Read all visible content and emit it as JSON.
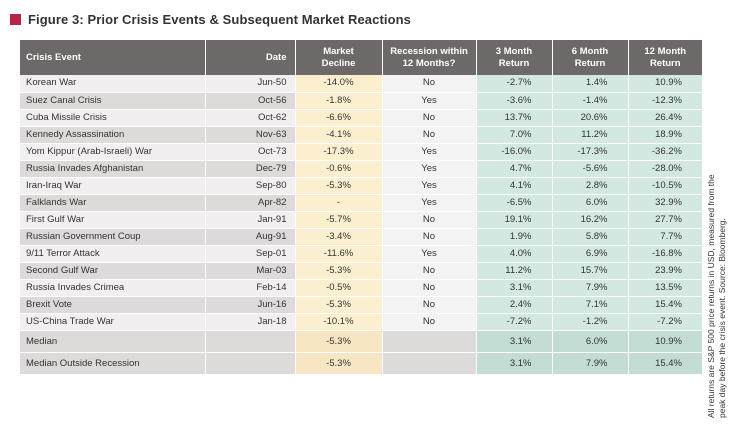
{
  "title": "Figure 3: Prior Crisis Events & Subsequent Market Reactions",
  "colors": {
    "accent": "#b8234a",
    "header": "#6d6969",
    "negative": "#c8283c",
    "decline_bg": "#fbefd0",
    "returns_bg": "#d2e8e0"
  },
  "headers": {
    "event": "Crisis Event",
    "date": "Date",
    "decline": [
      "Market",
      "Decline"
    ],
    "recession": [
      "Recession within",
      "12 Months?"
    ],
    "r3": [
      "3 Month",
      "Return"
    ],
    "r6": [
      "6 Month",
      "Return"
    ],
    "r12": [
      "12 Month",
      "Return"
    ]
  },
  "rows": [
    {
      "event": "Korean War",
      "date": "Jun-50",
      "decline": "-14.0%",
      "recession": "No",
      "r3": "-2.7%",
      "r6": "1.4%",
      "r12": "10.9%"
    },
    {
      "event": "Suez Canal Crisis",
      "date": "Oct-56",
      "decline": "-1.8%",
      "recession": "Yes",
      "r3": "-3.6%",
      "r6": "-1.4%",
      "r12": "-12.3%"
    },
    {
      "event": "Cuba Missile Crisis",
      "date": "Oct-62",
      "decline": "-6.6%",
      "recession": "No",
      "r3": "13.7%",
      "r6": "20.6%",
      "r12": "26.4%"
    },
    {
      "event": "Kennedy Assassination",
      "date": "Nov-63",
      "decline": "-4.1%",
      "recession": "No",
      "r3": "7.0%",
      "r6": "11.2%",
      "r12": "18.9%"
    },
    {
      "event": "Yom Kippur (Arab-Israeli) War",
      "date": "Oct-73",
      "decline": "-17.3%",
      "recession": "Yes",
      "r3": "-16.0%",
      "r6": "-17.3%",
      "r12": "-36.2%"
    },
    {
      "event": "Russia Invades Afghanistan",
      "date": "Dec-79",
      "decline": "-0.6%",
      "recession": "Yes",
      "r3": "4.7%",
      "r6": "-5.6%",
      "r12": "-28.0%"
    },
    {
      "event": "Iran-Iraq War",
      "date": "Sep-80",
      "decline": "-5.3%",
      "recession": "Yes",
      "r3": "4.1%",
      "r6": "2.8%",
      "r12": "-10.5%"
    },
    {
      "event": "Falklands War",
      "date": "Apr-82",
      "decline": "-",
      "recession": "Yes",
      "r3": "-6.5%",
      "r6": "6.0%",
      "r12": "32.9%"
    },
    {
      "event": "First Gulf War",
      "date": "Jan-91",
      "decline": "-5.7%",
      "recession": "No",
      "r3": "19.1%",
      "r6": "16.2%",
      "r12": "27.7%"
    },
    {
      "event": "Russian Government Coup",
      "date": "Aug-91",
      "decline": "-3.4%",
      "recession": "No",
      "r3": "1.9%",
      "r6": "5.8%",
      "r12": "7.7%"
    },
    {
      "event": "9/11 Terror Attack",
      "date": "Sep-01",
      "decline": "-11.6%",
      "recession": "Yes",
      "r3": "4.0%",
      "r6": "6.9%",
      "r12": "-16.8%"
    },
    {
      "event": "Second Gulf War",
      "date": "Mar-03",
      "decline": "-5.3%",
      "recession": "No",
      "r3": "11.2%",
      "r6": "15.7%",
      "r12": "23.9%"
    },
    {
      "event": "Russia Invades Crimea",
      "date": "Feb-14",
      "decline": "-0.5%",
      "recession": "No",
      "r3": "3.1%",
      "r6": "7.9%",
      "r12": "13.5%"
    },
    {
      "event": "Brexit Vote",
      "date": "Jun-16",
      "decline": "-5.3%",
      "recession": "No",
      "r3": "2.4%",
      "r6": "7.1%",
      "r12": "15.4%"
    },
    {
      "event": "US-China Trade War",
      "date": "Jan-18",
      "decline": "-10.1%",
      "recession": "No",
      "r3": "-7.2%",
      "r6": "-1.2%",
      "r12": "-7.2%"
    }
  ],
  "summary": [
    {
      "event": "Median",
      "date": "",
      "decline": "-5.3%",
      "recession": "",
      "r3": "3.1%",
      "r6": "6.0%",
      "r12": "10.9%"
    },
    {
      "event": "Median Outside Recession",
      "date": "",
      "decline": "-5.3%",
      "recession": "",
      "r3": "3.1%",
      "r6": "7.9%",
      "r12": "15.4%"
    }
  ],
  "side_note": "All returns are S&P 500 price returns in USD, measured from the peak day before the crisis event. Source: Bloomberg."
}
